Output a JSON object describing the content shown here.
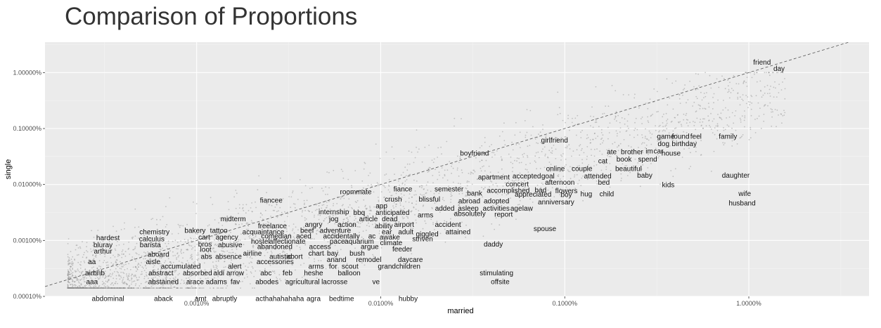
{
  "title": "Comparison of Proportions",
  "chart_data": {
    "type": "scatter",
    "title": "Comparison of Proportions",
    "xlabel": "married",
    "ylabel": "single",
    "x_scale": "log10",
    "y_scale": "log10",
    "xlim": [
      1.5e-06,
      0.045
    ],
    "ylim": [
      1e-06,
      0.035
    ],
    "x_ticks": [
      {
        "value": 1e-05,
        "label": "0.0010%"
      },
      {
        "value": 0.0001,
        "label": "0.0100%"
      },
      {
        "value": 0.001,
        "label": "0.1000%"
      },
      {
        "value": 0.01,
        "label": "1.0000%"
      }
    ],
    "y_ticks": [
      {
        "value": 1e-06,
        "label": "0.00010%"
      },
      {
        "value": 1e-05,
        "label": "0.00100%"
      },
      {
        "value": 0.0001,
        "label": "0.01000%"
      },
      {
        "value": 0.001,
        "label": "0.10000%"
      },
      {
        "value": 0.01,
        "label": "1.00000%"
      }
    ],
    "grid": true,
    "reference_line": "y = x (dashed)",
    "background_points": "dense cloud of grey jittered points below the labeled words",
    "words": [
      {
        "w": "friend",
        "x": 0.0118,
        "y": 0.0152
      },
      {
        "w": "day",
        "x": 0.0146,
        "y": 0.0117
      },
      {
        "w": "girlfriend",
        "x": 0.00088,
        "y": 0.00061
      },
      {
        "w": "game",
        "x": 0.00354,
        "y": 0.00072
      },
      {
        "w": "found",
        "x": 0.00426,
        "y": 0.00072
      },
      {
        "w": "feel",
        "x": 0.00516,
        "y": 0.00072
      },
      {
        "w": "family",
        "x": 0.0077,
        "y": 0.00072
      },
      {
        "w": "dog",
        "x": 0.00344,
        "y": 0.00053
      },
      {
        "w": "birthday",
        "x": 0.00446,
        "y": 0.00053
      },
      {
        "w": "boyfriend",
        "x": 0.000323,
        "y": 0.00036
      },
      {
        "w": "ate",
        "x": 0.0018,
        "y": 0.00038
      },
      {
        "w": "brother",
        "x": 0.00232,
        "y": 0.00038
      },
      {
        "w": "im",
        "x": 0.00288,
        "y": 0.00039
      },
      {
        "w": "car",
        "x": 0.00323,
        "y": 0.00039
      },
      {
        "w": "house",
        "x": 0.00378,
        "y": 0.00036
      },
      {
        "w": "book",
        "x": 0.0021,
        "y": 0.00028
      },
      {
        "w": "spend",
        "x": 0.00282,
        "y": 0.00028
      },
      {
        "w": "cat",
        "x": 0.00161,
        "y": 0.00026
      },
      {
        "w": "online",
        "x": 0.00089,
        "y": 0.00019
      },
      {
        "w": "couple",
        "x": 0.00124,
        "y": 0.00019
      },
      {
        "w": "beautiful",
        "x": 0.00222,
        "y": 0.00019
      },
      {
        "w": "baby",
        "x": 0.00272,
        "y": 0.000145
      },
      {
        "w": "daughter",
        "x": 0.0085,
        "y": 0.000145
      },
      {
        "w": "apartment",
        "x": 0.000412,
        "y": 0.000135
      },
      {
        "w": "accepted",
        "x": 0.000622,
        "y": 0.00014
      },
      {
        "w": "goal",
        "x": 0.00081,
        "y": 0.00014
      },
      {
        "w": "attended",
        "x": 0.00151,
        "y": 0.00014
      },
      {
        "w": "afternoon",
        "x": 0.00094,
        "y": 0.000108
      },
      {
        "w": "bed",
        "x": 0.00163,
        "y": 0.000108
      },
      {
        "w": "concert",
        "x": 0.000552,
        "y": 0.000101
      },
      {
        "w": "kids",
        "x": 0.00365,
        "y": 9.8e-05
      },
      {
        "w": "fiance",
        "x": 0.000132,
        "y": 8.2e-05
      },
      {
        "w": "semester",
        "x": 0.000235,
        "y": 8.2e-05
      },
      {
        "w": "roommate",
        "x": 7.32e-05,
        "y": 7.3e-05
      },
      {
        "w": "accomplished",
        "x": 0.000493,
        "y": 7.7e-05
      },
      {
        "w": "bad",
        "x": 0.000739,
        "y": 7.9e-05
      },
      {
        "w": "flowers",
        "x": 0.00102,
        "y": 7.6e-05
      },
      {
        "w": "wife",
        "x": 0.0095,
        "y": 6.8e-05
      },
      {
        "w": "bank",
        "x": 0.000324,
        "y": 6.9e-05
      },
      {
        "w": "appreciated",
        "x": 0.000673,
        "y": 6.6e-05
      },
      {
        "w": "boy",
        "x": 0.00102,
        "y": 6.5e-05
      },
      {
        "w": "hug",
        "x": 0.00131,
        "y": 6.7e-05
      },
      {
        "w": "child",
        "x": 0.00169,
        "y": 6.7e-05
      },
      {
        "w": "fiancee",
        "x": 2.54e-05,
        "y": 5.2e-05
      },
      {
        "w": "crush",
        "x": 0.000117,
        "y": 5.4e-05
      },
      {
        "w": "blissful",
        "x": 0.000184,
        "y": 5.4e-05
      },
      {
        "w": "abroad",
        "x": 0.000303,
        "y": 5e-05
      },
      {
        "w": "adopted",
        "x": 0.000426,
        "y": 5e-05
      },
      {
        "w": "anniversary",
        "x": 0.000897,
        "y": 4.8e-05
      },
      {
        "w": "husband",
        "x": 0.0092,
        "y": 4.6e-05
      },
      {
        "w": "app",
        "x": 0.000101,
        "y": 4.1e-05
      },
      {
        "w": "added",
        "x": 0.000223,
        "y": 3.7e-05
      },
      {
        "w": "asleep",
        "x": 0.000299,
        "y": 3.7e-05
      },
      {
        "w": "activities",
        "x": 0.000424,
        "y": 3.7e-05
      },
      {
        "w": "age",
        "x": 0.000545,
        "y": 3.7e-05
      },
      {
        "w": "law",
        "x": 0.000628,
        "y": 3.7e-05
      },
      {
        "w": "internship",
        "x": 5.56e-05,
        "y": 3.2e-05
      },
      {
        "w": "bbq",
        "x": 7.64e-05,
        "y": 3.1e-05
      },
      {
        "w": "anticipated",
        "x": 0.000116,
        "y": 3.1e-05
      },
      {
        "w": "arms",
        "x": 0.000175,
        "y": 2.8e-05
      },
      {
        "w": "absolutely",
        "x": 0.000305,
        "y": 3e-05
      },
      {
        "w": "report",
        "x": 0.000465,
        "y": 2.9e-05
      },
      {
        "w": "midterm",
        "x": 1.58e-05,
        "y": 2.4e-05
      },
      {
        "w": "jog",
        "x": 5.56e-05,
        "y": 2.4e-05
      },
      {
        "w": "article",
        "x": 8.58e-05,
        "y": 2.4e-05
      },
      {
        "w": "dead",
        "x": 0.000112,
        "y": 2.4e-05
      },
      {
        "w": "accident",
        "x": 0.000232,
        "y": 1.9e-05
      },
      {
        "w": "freelance",
        "x": 2.58e-05,
        "y": 1.8e-05
      },
      {
        "w": "angry",
        "x": 4.32e-05,
        "y": 1.9e-05
      },
      {
        "w": "action",
        "x": 6.56e-05,
        "y": 1.9e-05
      },
      {
        "w": "ability",
        "x": 0.000104,
        "y": 1.8e-05
      },
      {
        "w": "airport",
        "x": 0.000134,
        "y": 1.9e-05
      },
      {
        "w": "spouse",
        "x": 0.00078,
        "y": 1.6e-05
      },
      {
        "w": "chemistry",
        "x": 5.9e-06,
        "y": 1.4e-05
      },
      {
        "w": "bakery",
        "x": 9.8e-06,
        "y": 1.5e-05
      },
      {
        "w": "tattoo",
        "x": 1.32e-05,
        "y": 1.5e-05
      },
      {
        "w": "acquaintance",
        "x": 2.3e-05,
        "y": 1.4e-05
      },
      {
        "w": "beef",
        "x": 3.98e-05,
        "y": 1.5e-05
      },
      {
        "w": "adventure",
        "x": 5.67e-05,
        "y": 1.5e-05
      },
      {
        "w": "ear",
        "x": 0.000108,
        "y": 1.4e-05
      },
      {
        "w": "adult",
        "x": 0.000137,
        "y": 1.4e-05
      },
      {
        "w": "giggled",
        "x": 0.000179,
        "y": 1.3e-05
      },
      {
        "w": "attained",
        "x": 0.000263,
        "y": 1.4e-05
      },
      {
        "w": "hardest",
        "x": 3.3e-06,
        "y": 1.1e-05
      },
      {
        "w": "calculus",
        "x": 5.7e-06,
        "y": 1.06e-05
      },
      {
        "w": "cart",
        "x": 1.1e-05,
        "y": 1.13e-05
      },
      {
        "w": "agency",
        "x": 1.46e-05,
        "y": 1.13e-05
      },
      {
        "w": "comedian",
        "x": 2.71e-05,
        "y": 1.18e-05
      },
      {
        "w": "aced",
        "x": 3.82e-05,
        "y": 1.18e-05
      },
      {
        "w": "accidentally",
        "x": 6.12e-05,
        "y": 1.18e-05
      },
      {
        "w": "ac",
        "x": 8.96e-05,
        "y": 1.18e-05
      },
      {
        "w": "awake",
        "x": 0.000112,
        "y": 1.13e-05
      },
      {
        "w": "striven",
        "x": 0.000169,
        "y": 1.06e-05
      },
      {
        "w": "daddy",
        "x": 0.000409,
        "y": 8.5e-06
      },
      {
        "w": "bluray",
        "x": 3.1e-06,
        "y": 8.2e-06
      },
      {
        "w": "barista",
        "x": 5.6e-06,
        "y": 8.2e-06
      },
      {
        "w": "bros",
        "x": 1.11e-05,
        "y": 8.5e-06
      },
      {
        "w": "abusive",
        "x": 1.52e-05,
        "y": 8.2e-06
      },
      {
        "w": "hostel",
        "x": 2.22e-05,
        "y": 9.5e-06
      },
      {
        "w": "affectionate",
        "x": 3.11e-05,
        "y": 9.5e-06
      },
      {
        "w": "pace",
        "x": 5.81e-05,
        "y": 9.5e-06
      },
      {
        "w": "aquarium",
        "x": 7.65e-05,
        "y": 9.5e-06
      },
      {
        "w": "climate",
        "x": 0.000114,
        "y": 9e-06
      },
      {
        "w": "arthur",
        "x": 3.1e-06,
        "y": 6.4e-06
      },
      {
        "w": "loot",
        "x": 1.12e-05,
        "y": 6.8e-06
      },
      {
        "w": "abandoned",
        "x": 2.66e-05,
        "y": 7.7e-06
      },
      {
        "w": "access",
        "x": 4.68e-05,
        "y": 7.7e-06
      },
      {
        "w": "argue",
        "x": 8.71e-05,
        "y": 7.7e-06
      },
      {
        "w": "feeder",
        "x": 0.000131,
        "y": 6.9e-06
      },
      {
        "w": "aboard",
        "x": 6.2e-06,
        "y": 5.6e-06
      },
      {
        "w": "airline",
        "x": 2.01e-05,
        "y": 5.8e-06
      },
      {
        "w": "chart",
        "x": 4.46e-05,
        "y": 5.8e-06
      },
      {
        "w": "bay",
        "x": 5.48e-05,
        "y": 5.8e-06
      },
      {
        "w": "bush",
        "x": 7.45e-05,
        "y": 5.8e-06
      },
      {
        "w": "abs",
        "x": 1.13e-05,
        "y": 5.1e-06
      },
      {
        "w": "absence",
        "x": 1.49e-05,
        "y": 5.1e-06
      },
      {
        "w": "autistic",
        "x": 2.85e-05,
        "y": 5.1e-06
      },
      {
        "w": "abort",
        "x": 3.41e-05,
        "y": 5.1e-06
      },
      {
        "w": "anand",
        "x": 5.76e-05,
        "y": 4.5e-06
      },
      {
        "w": "remodel",
        "x": 8.61e-05,
        "y": 4.5e-06
      },
      {
        "w": "daycare",
        "x": 0.000145,
        "y": 4.5e-06
      },
      {
        "w": "aa",
        "x": 2.7e-06,
        "y": 4.1e-06
      },
      {
        "w": "aisle",
        "x": 5.8e-06,
        "y": 4.1e-06
      },
      {
        "w": "accessories",
        "x": 2.67e-05,
        "y": 4.1e-06
      },
      {
        "w": "accumulated",
        "x": 8.2e-06,
        "y": 3.4e-06
      },
      {
        "w": "alert",
        "x": 1.61e-05,
        "y": 3.4e-06
      },
      {
        "w": "arms",
        "x": 4.46e-05,
        "y": 3.4e-06
      },
      {
        "w": "for",
        "x": 5.51e-05,
        "y": 3.4e-06
      },
      {
        "w": "scout",
        "x": 6.81e-05,
        "y": 3.4e-06
      },
      {
        "w": "grandchildren",
        "x": 0.000126,
        "y": 3.4e-06
      },
      {
        "w": "airbnb",
        "x": 2.8e-06,
        "y": 2.6e-06
      },
      {
        "w": "abstract",
        "x": 6.4e-06,
        "y": 2.6e-06
      },
      {
        "w": "absorbed",
        "x": 1.01e-05,
        "y": 2.6e-06
      },
      {
        "w": "aldi",
        "x": 1.32e-05,
        "y": 2.6e-06
      },
      {
        "w": "arrow",
        "x": 1.62e-05,
        "y": 2.6e-06
      },
      {
        "w": "abc",
        "x": 2.38e-05,
        "y": 2.6e-06
      },
      {
        "w": "feb",
        "x": 3.12e-05,
        "y": 2.6e-06
      },
      {
        "w": "heshe",
        "x": 4.32e-05,
        "y": 2.6e-06
      },
      {
        "w": "balloon",
        "x": 6.74e-05,
        "y": 2.6e-06
      },
      {
        "w": "stimulating",
        "x": 0.000426,
        "y": 2.6e-06
      },
      {
        "w": "aaa",
        "x": 2.7e-06,
        "y": 1.8e-06
      },
      {
        "w": "abstained",
        "x": 6.6e-06,
        "y": 1.8e-06
      },
      {
        "w": "arace",
        "x": 9.8e-06,
        "y": 1.8e-06
      },
      {
        "w": "adams",
        "x": 1.28e-05,
        "y": 1.8e-06
      },
      {
        "w": "fav",
        "x": 1.62e-05,
        "y": 1.8e-06
      },
      {
        "w": "abodes",
        "x": 2.41e-05,
        "y": 1.8e-06
      },
      {
        "w": "agricultural",
        "x": 3.76e-05,
        "y": 1.8e-06
      },
      {
        "w": "lacrosse",
        "x": 5.61e-05,
        "y": 1.8e-06
      },
      {
        "w": "ve",
        "x": 9.43e-05,
        "y": 1.8e-06
      },
      {
        "w": "offsite",
        "x": 0.000446,
        "y": 1.8e-06
      },
      {
        "w": "abdominal",
        "x": 3.3e-06,
        "y": 9e-07
      },
      {
        "w": "aback",
        "x": 6.6e-06,
        "y": 9e-07
      },
      {
        "w": "amt",
        "x": 1.05e-05,
        "y": 9e-07
      },
      {
        "w": "abruptly",
        "x": 1.42e-05,
        "y": 9e-07
      },
      {
        "w": "acthahahahaha",
        "x": 2.83e-05,
        "y": 9e-07
      },
      {
        "w": "agra",
        "x": 4.32e-05,
        "y": 9e-07
      },
      {
        "w": "bedtime",
        "x": 6.13e-05,
        "y": 9e-07
      },
      {
        "w": "hubby",
        "x": 0.000141,
        "y": 9e-07
      }
    ]
  }
}
